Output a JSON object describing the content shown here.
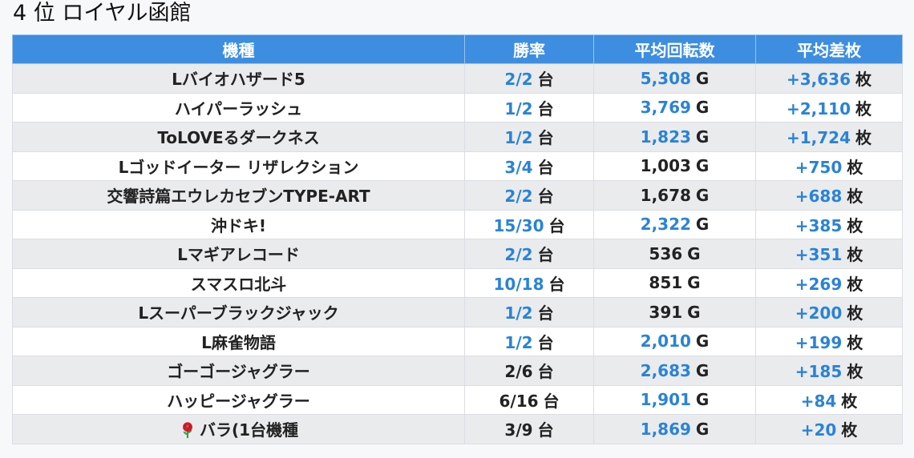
{
  "title": "4 位 ロイヤル函館",
  "columns": [
    "機種",
    "勝率",
    "平均回転数",
    "平均差枚"
  ],
  "units": {
    "win": "台",
    "spins": "G",
    "diff": "枚"
  },
  "colors": {
    "header_bg": "#3d8ee0",
    "highlight": "#2a83d6",
    "row_alt": "#eaebed"
  },
  "rows": [
    {
      "machine": "Lバイオハザード5",
      "win_rate": "2/2",
      "win_hl": true,
      "spins": "5,308",
      "spins_hl": true,
      "diff": "+3,636",
      "diff_hl": true
    },
    {
      "machine": "ハイパーラッシュ",
      "win_rate": "1/2",
      "win_hl": true,
      "spins": "3,769",
      "spins_hl": true,
      "diff": "+2,110",
      "diff_hl": true
    },
    {
      "machine": "ToLOVEるダークネス",
      "win_rate": "1/2",
      "win_hl": true,
      "spins": "1,823",
      "spins_hl": true,
      "diff": "+1,724",
      "diff_hl": true
    },
    {
      "machine": "Lゴッドイーター リザレクション",
      "win_rate": "3/4",
      "win_hl": true,
      "spins": "1,003",
      "spins_hl": false,
      "diff": "+750",
      "diff_hl": true
    },
    {
      "machine": "交響詩篇エウレカセブンTYPE-ART",
      "win_rate": "2/2",
      "win_hl": true,
      "spins": "1,678",
      "spins_hl": false,
      "diff": "+688",
      "diff_hl": true
    },
    {
      "machine": "沖ドキ!",
      "win_rate": "15/30",
      "win_hl": true,
      "spins": "2,322",
      "spins_hl": true,
      "diff": "+385",
      "diff_hl": true
    },
    {
      "machine": "Lマギアレコード",
      "win_rate": "2/2",
      "win_hl": true,
      "spins": "536",
      "spins_hl": false,
      "diff": "+351",
      "diff_hl": true
    },
    {
      "machine": "スマスロ北斗",
      "win_rate": "10/18",
      "win_hl": true,
      "spins": "851",
      "spins_hl": false,
      "diff": "+269",
      "diff_hl": true
    },
    {
      "machine": "Lスーパーブラックジャック",
      "win_rate": "1/2",
      "win_hl": true,
      "spins": "391",
      "spins_hl": false,
      "diff": "+200",
      "diff_hl": true
    },
    {
      "machine": "L麻雀物語",
      "win_rate": "1/2",
      "win_hl": true,
      "spins": "2,010",
      "spins_hl": true,
      "diff": "+199",
      "diff_hl": true
    },
    {
      "machine": "ゴーゴージャグラー",
      "win_rate": "2/6",
      "win_hl": false,
      "spins": "2,683",
      "spins_hl": true,
      "diff": "+185",
      "diff_hl": true
    },
    {
      "machine": "ハッピージャグラー",
      "win_rate": "6/16",
      "win_hl": false,
      "spins": "1,901",
      "spins_hl": true,
      "diff": "+84",
      "diff_hl": true
    },
    {
      "machine": "バラ(1台機種",
      "icon": "rose-icon",
      "win_rate": "3/9",
      "win_hl": false,
      "spins": "1,869",
      "spins_hl": true,
      "diff": "+20",
      "diff_hl": true
    }
  ]
}
